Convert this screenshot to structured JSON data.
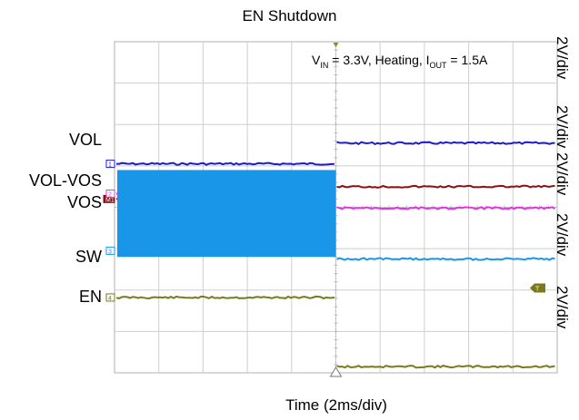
{
  "chart_data": {
    "type": "line",
    "title": "EN Shutdown",
    "xlabel": "Time (2ms/div)",
    "x_divisions": 10,
    "y_divisions": 8,
    "conditions": {
      "vin": "3.3V",
      "load_text": "Heating",
      "iout": "1.5A"
    },
    "series": [
      {
        "name": "VOL",
        "marker": "1",
        "color": "#1c1cd4",
        "level_before_div": 5.05,
        "level_after_div": 5.55,
        "noisy": false
      },
      {
        "name": "VOL-VOS",
        "marker": "M1",
        "color": "#8c1016",
        "level_before_div": 4.2,
        "level_after_div": 4.5,
        "noisy": false
      },
      {
        "name": "VOS",
        "marker": "2",
        "color": "#e830e8",
        "level_before_div": 4.33,
        "level_after_div": 3.98,
        "noisy": false
      },
      {
        "name": "SW",
        "marker": "3",
        "color": "#1a96e8",
        "level_before_div": [
          2.8,
          4.9
        ],
        "level_after_div": 2.75,
        "noisy": true
      },
      {
        "name": "EN",
        "marker": "4",
        "color": "#7a7a1c",
        "level_before_div": 1.82,
        "level_after_div": 0.15,
        "noisy": false
      }
    ],
    "scales": [
      "2V/div",
      "2V/div",
      "2V/div",
      "2V/div",
      "2V/div"
    ],
    "trigger_time_div": 5.0,
    "trigger_marker": "T",
    "grid": true
  }
}
